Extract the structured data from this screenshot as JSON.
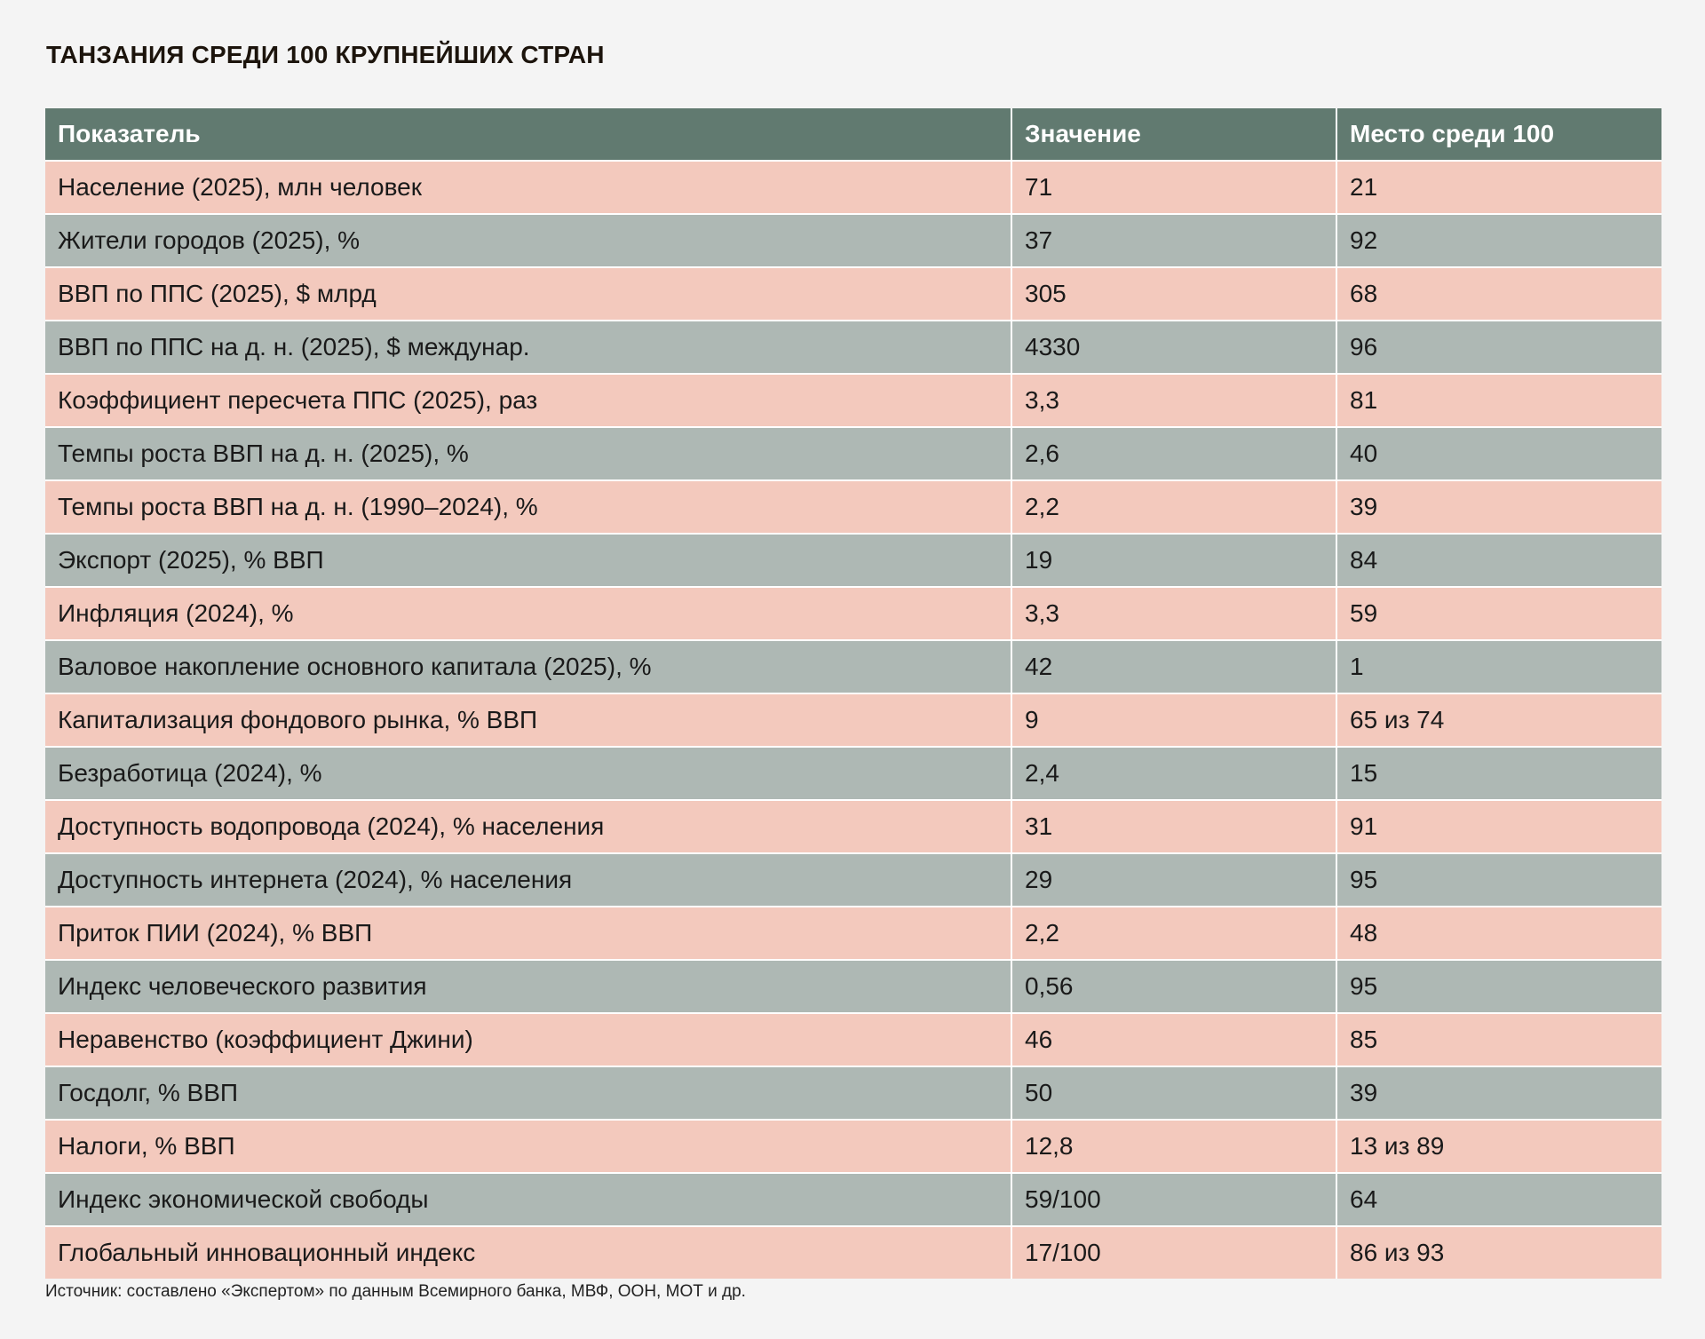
{
  "title": "ТАНЗАНИЯ СРЕДИ 100 КРУПНЕЙШИХ СТРАН",
  "table": {
    "headers": [
      "Показатель",
      "Значение",
      "Место среди 100"
    ],
    "rows": [
      [
        "Население (2025), млн человек",
        "71",
        "21"
      ],
      [
        "Жители городов (2025), %",
        "37",
        "92"
      ],
      [
        "ВВП по ППС (2025), $ млрд",
        "305",
        "68"
      ],
      [
        "ВВП по ППС на д. н. (2025), $ междунар.",
        "4330",
        "96"
      ],
      [
        "Коэффициент пересчета ППС (2025), раз",
        "3,3",
        "81"
      ],
      [
        "Темпы роста ВВП на д. н. (2025), %",
        "2,6",
        "40"
      ],
      [
        "Темпы роста ВВП на д. н. (1990–2024), %",
        "2,2",
        "39"
      ],
      [
        "Экспорт (2025), % ВВП",
        "19",
        "84"
      ],
      [
        "Инфляция (2024), %",
        "3,3",
        "59"
      ],
      [
        "Валовое накопление основного капитала (2025), %",
        "42",
        "1"
      ],
      [
        "Капитализация фондового рынка, % ВВП",
        "9",
        "65 из 74"
      ],
      [
        "Безработица (2024), %",
        "2,4",
        "15"
      ],
      [
        "Доступность водопровода (2024), % населения",
        "31",
        "91"
      ],
      [
        "Доступность интернета (2024), % населения",
        "29",
        "95"
      ],
      [
        "Приток ПИИ (2024), % ВВП",
        "2,2",
        "48"
      ],
      [
        "Индекс человеческого развития",
        "0,56",
        "95"
      ],
      [
        "Неравенство (коэффициент Джини)",
        "46",
        "85"
      ],
      [
        "Госдолг, % ВВП",
        "50",
        "39"
      ],
      [
        "Налоги, % ВВП",
        "12,8",
        "13 из 89"
      ],
      [
        "Индекс экономической свободы",
        "59/100",
        "64"
      ],
      [
        "Глобальный инновационный индекс",
        "17/100",
        "86 из 93"
      ]
    ]
  },
  "source": "Источник: составлено «Экспертом» по данным Всемирного банка, МВФ, ООН, МОТ и др.",
  "colors": {
    "header_bg": "#617a70",
    "row_pink": "#f3c9bd",
    "row_gray": "#aeb8b4",
    "page_bg": "#f4f4f4"
  }
}
